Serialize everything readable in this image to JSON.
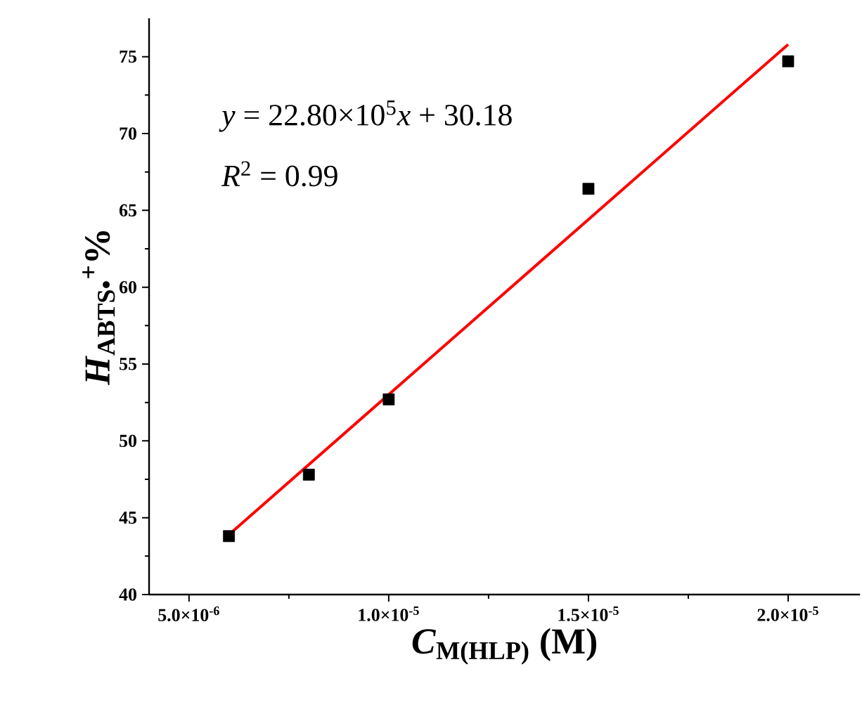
{
  "chart_data": {
    "type": "scatter",
    "xlabel": "*C*$_{M(HLP)}$ (M)",
    "ylabel": "*H*$_{ABTS•}$$^{+}$%",
    "annotations": [
      "*y* = 22.80×10$^{5}$*x* + 30.18",
      "*R*$^{2}$ = 0.99"
    ],
    "series": [
      {
        "color": "#000000",
        "marker": "square",
        "x": [
          6e-06,
          8e-06,
          1e-05,
          1.5e-05,
          2e-05
        ],
        "values": [
          43.8,
          47.8,
          52.7,
          66.4,
          74.7
        ]
      },
      {
        "type": "line",
        "color": "#ff0000",
        "marker": "none",
        "line_style": "solid",
        "x": [
          6e-06,
          2e-05
        ],
        "values": [
          43.9,
          75.8
        ]
      }
    ],
    "xlim": [
      4e-06,
      2.18e-05
    ],
    "ylim": [
      40,
      77.5
    ],
    "xticks": [
      {
        "value": 5e-06,
        "label": "5.0×10$^{-6}$"
      },
      {
        "value": 1e-05,
        "label": "1.0×10$^{-5}$"
      },
      {
        "value": 1.5e-05,
        "label": "1.5×10$^{-5}$"
      },
      {
        "value": 2e-05,
        "label": "2.0×10$^{-5}$"
      }
    ],
    "yticks": [
      40,
      45,
      50,
      55,
      60,
      65,
      70,
      75
    ]
  }
}
